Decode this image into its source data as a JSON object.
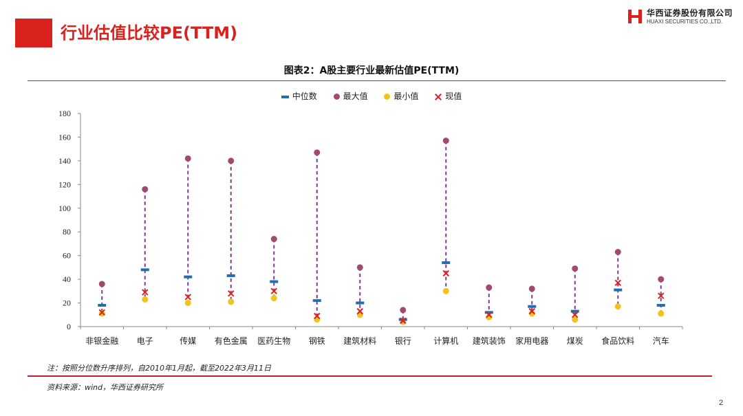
{
  "header": {
    "slide_title": "行业估值比较PE(TTM)",
    "logo_cn": "华西证券股份有限公司",
    "logo_en": "HUAXI SECURITIES CO.,LTD."
  },
  "figure": {
    "title": "图表2：A股主要行业最新估值PE(TTM)",
    "note": "注：按照分位数升序排列，自2010年1月起，截至2022年3月11日",
    "source": "资料来源：wind，华西证券研究所",
    "page_number": "2"
  },
  "colors": {
    "brand_red": "#d9221e",
    "median": "#1f6fb0",
    "max": "#a14a6e",
    "min": "#f3c21b",
    "current": "#d9221e",
    "range_line": "#7a3c8c"
  },
  "chart_data": {
    "type": "scatter",
    "title": "图表2：A股主要行业最新估值PE(TTM)",
    "legend_position": "top-center",
    "ylim": [
      0,
      180
    ],
    "y_ticks": [
      0,
      20,
      40,
      60,
      80,
      100,
      120,
      140,
      160,
      180
    ],
    "grid": false,
    "categories": [
      "非银金融",
      "电子",
      "传媒",
      "有色金属",
      "医药生物",
      "钢铁",
      "建筑材料",
      "银行",
      "计算机",
      "建筑装饰",
      "家用电器",
      "煤炭",
      "食品饮料",
      "汽车"
    ],
    "series": [
      {
        "name": "中位数",
        "marker": "dash",
        "values": [
          18,
          48,
          42,
          43,
          38,
          22,
          20,
          6,
          54,
          12,
          17,
          13,
          31,
          18
        ]
      },
      {
        "name": "最大值",
        "marker": "circle",
        "values": [
          36,
          116,
          142,
          140,
          74,
          147,
          50,
          14,
          157,
          33,
          32,
          49,
          63,
          40
        ]
      },
      {
        "name": "最小值",
        "marker": "circle",
        "values": [
          11,
          23,
          20,
          21,
          24,
          6,
          10,
          4,
          30,
          8,
          11,
          6,
          17,
          11
        ]
      },
      {
        "name": "现值",
        "marker": "x",
        "values": [
          12,
          29,
          25,
          28,
          30,
          9,
          13,
          5,
          45,
          10,
          13,
          10,
          37,
          26
        ]
      }
    ]
  }
}
